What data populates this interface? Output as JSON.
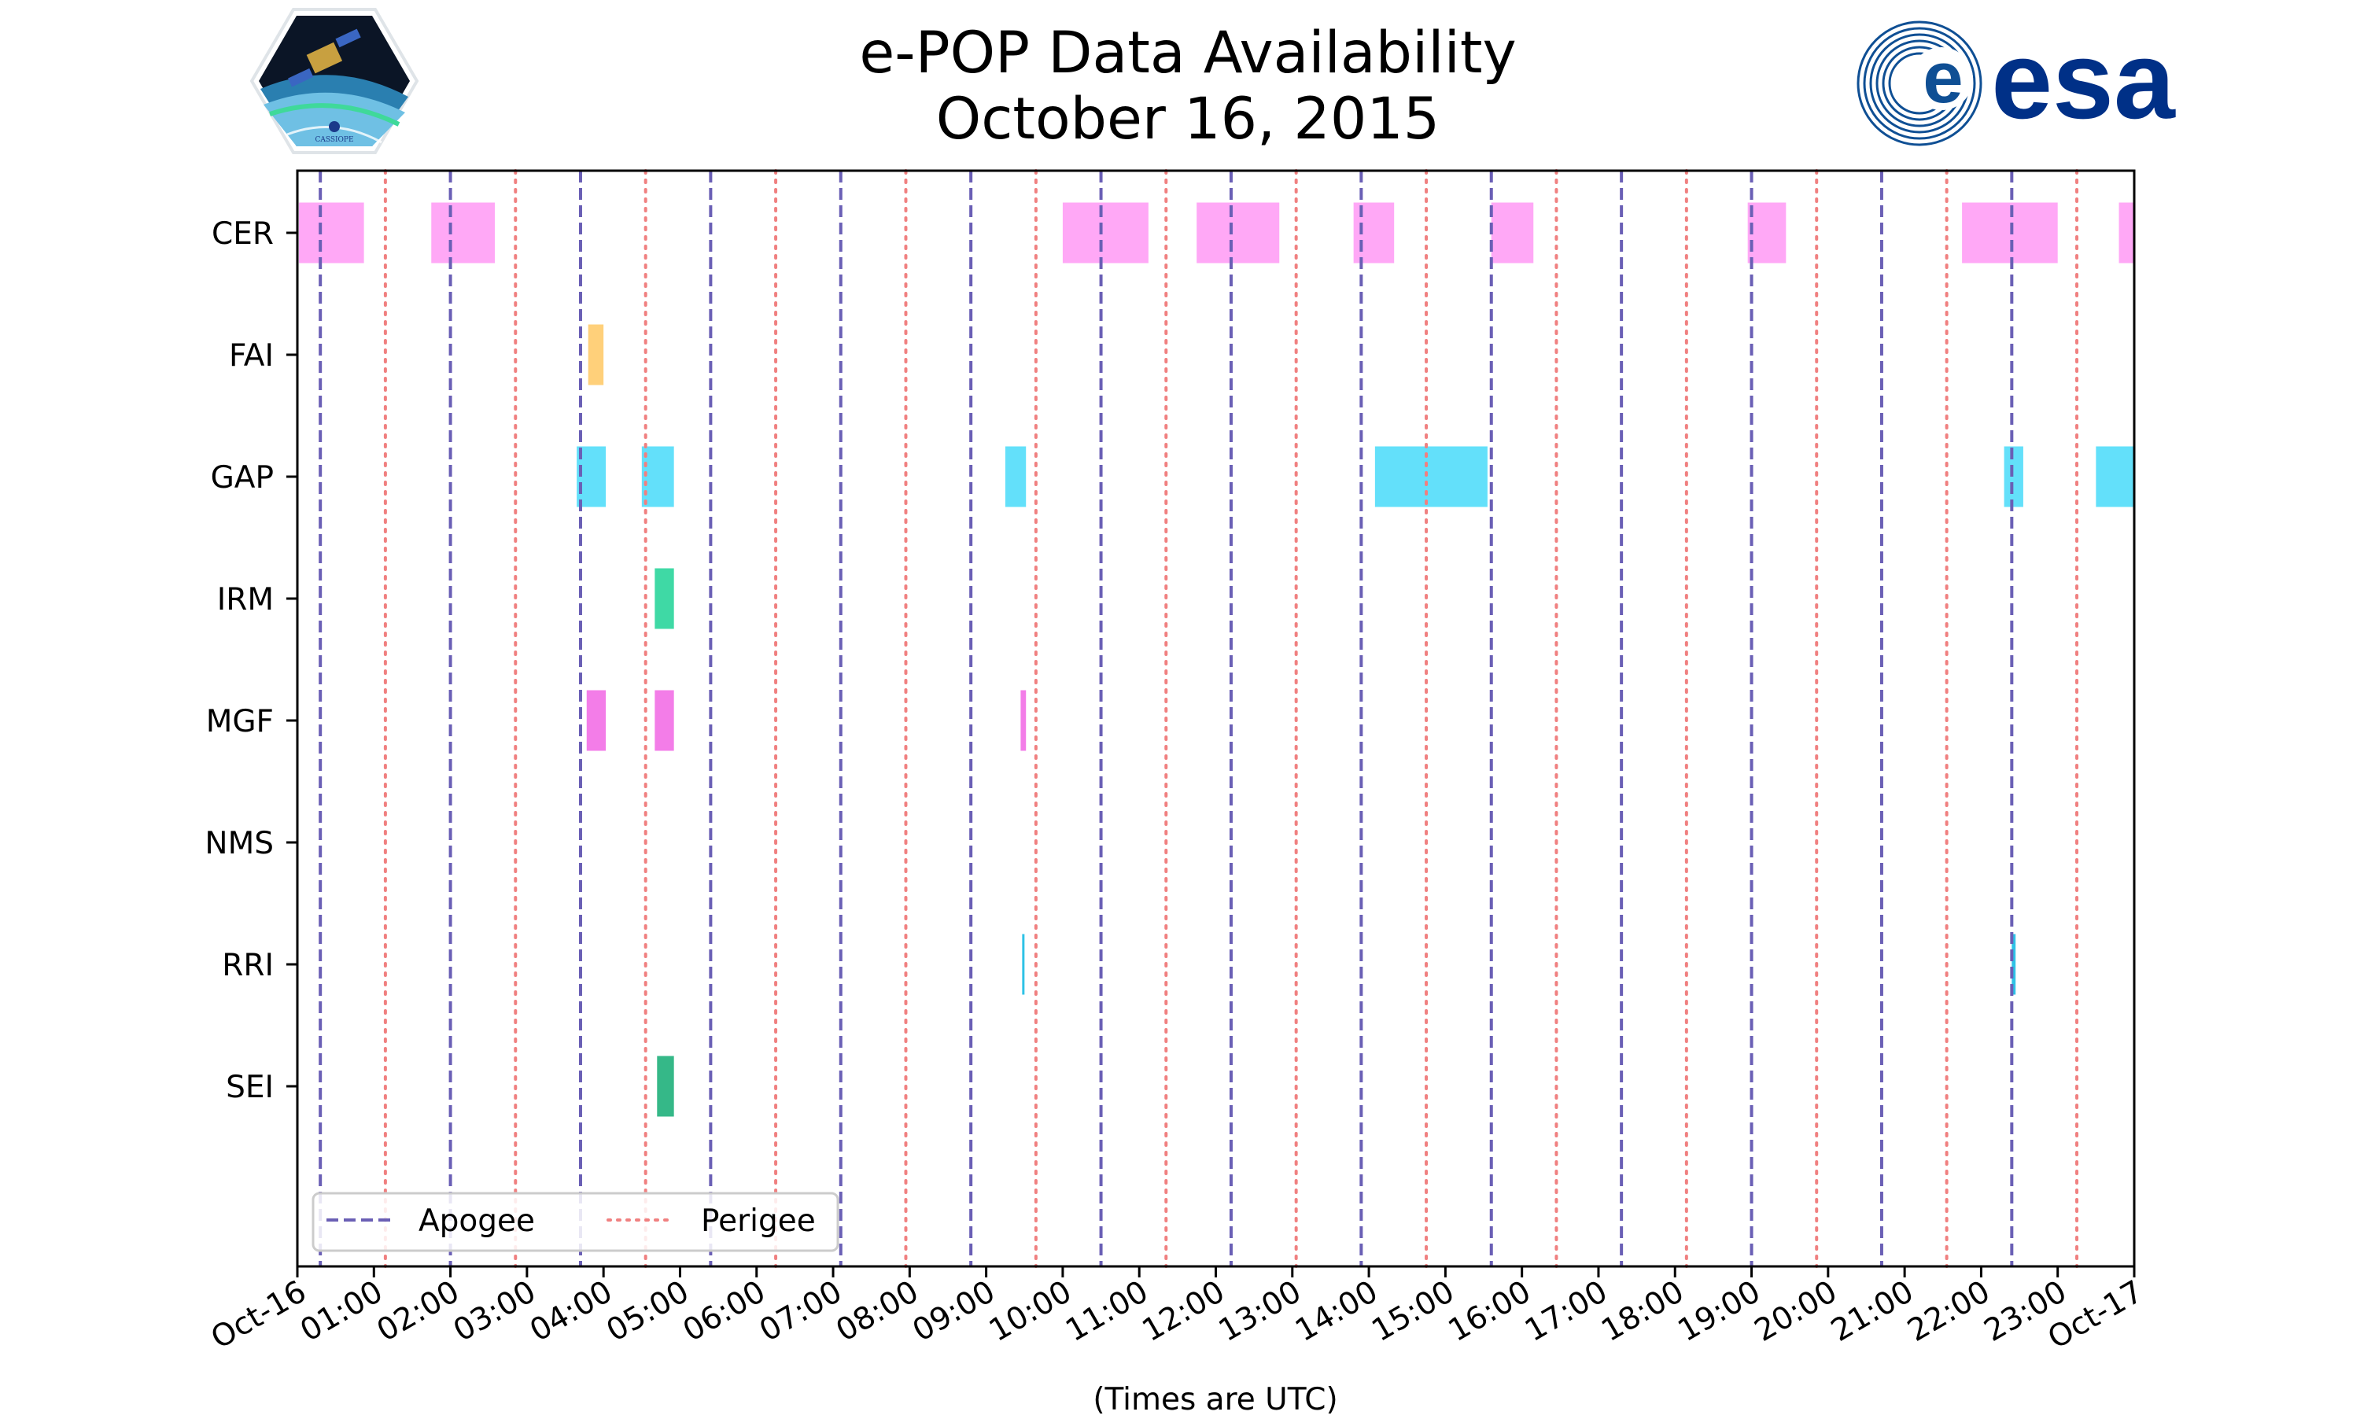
{
  "chart_data": {
    "type": "timeline",
    "title": "e-POP Data Availability",
    "subtitle": "October 16, 2015",
    "xlabel": "(Times are UTC)",
    "ylabel": "",
    "xlim_hours": [
      0,
      24
    ],
    "x_tick_labels": [
      "Oct-16",
      "01:00",
      "02:00",
      "03:00",
      "04:00",
      "05:00",
      "06:00",
      "07:00",
      "08:00",
      "09:00",
      "10:00",
      "11:00",
      "12:00",
      "13:00",
      "14:00",
      "15:00",
      "16:00",
      "17:00",
      "18:00",
      "19:00",
      "20:00",
      "21:00",
      "22:00",
      "23:00",
      "Oct-17"
    ],
    "instruments": [
      "CER",
      "FAI",
      "GAP",
      "IRM",
      "MGF",
      "NMS",
      "RRI",
      "SEI"
    ],
    "series": [
      {
        "name": "CER",
        "color": "#ffa8f6",
        "intervals": [
          [
            0.02,
            0.87
          ],
          [
            1.75,
            2.58
          ],
          [
            10.0,
            11.12
          ],
          [
            11.75,
            12.83
          ],
          [
            13.8,
            14.33
          ],
          [
            15.6,
            16.15
          ],
          [
            18.95,
            19.45
          ],
          [
            21.75,
            23.0
          ],
          [
            23.8,
            24.0
          ]
        ]
      },
      {
        "name": "FAI",
        "color": "#ffd07a",
        "intervals": [
          [
            3.8,
            4.0
          ]
        ]
      },
      {
        "name": "GAP",
        "color": "#63e0fa",
        "intervals": [
          [
            3.65,
            4.03
          ],
          [
            4.5,
            4.92
          ],
          [
            9.25,
            9.52
          ],
          [
            14.08,
            15.55
          ],
          [
            22.3,
            22.55
          ],
          [
            23.5,
            24.0
          ]
        ]
      },
      {
        "name": "IRM",
        "color": "#3fd9a5",
        "intervals": [
          [
            4.67,
            4.92
          ]
        ]
      },
      {
        "name": "MGF",
        "color": "#f37de8",
        "intervals": [
          [
            3.78,
            4.03
          ],
          [
            4.67,
            4.92
          ],
          [
            9.45,
            9.52
          ]
        ]
      },
      {
        "name": "NMS",
        "color": "#cccccc",
        "intervals": []
      },
      {
        "name": "RRI",
        "color": "#2fc2e6",
        "intervals": [
          [
            9.47,
            9.5
          ],
          [
            22.4,
            22.45
          ]
        ]
      },
      {
        "name": "SEI",
        "color": "#35b888",
        "intervals": [
          [
            4.7,
            4.92
          ]
        ]
      }
    ],
    "apogee_hours": [
      0.3,
      2.0,
      3.7,
      5.4,
      7.1,
      8.8,
      10.5,
      12.2,
      13.9,
      15.6,
      17.3,
      19.0,
      20.7,
      22.4
    ],
    "perigee_hours": [
      1.15,
      2.85,
      4.55,
      6.25,
      7.95,
      9.65,
      11.35,
      13.05,
      14.75,
      16.45,
      18.15,
      19.85,
      21.55,
      23.25
    ],
    "apogee_color": "#6a5fb5",
    "perigee_color": "#f08080",
    "legend": {
      "apogee_label": "Apogee",
      "perigee_label": "Perigee",
      "position": "lower-left"
    },
    "logos": {
      "left": "CASSIOPE",
      "right": "esa"
    }
  }
}
